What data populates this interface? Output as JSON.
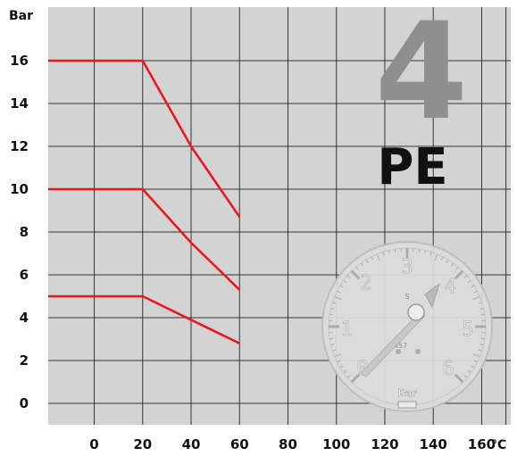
{
  "chart_data": {
    "type": "line",
    "ylabel": "Bar",
    "xlabel": "°C",
    "x_ticks": [
      0,
      20,
      40,
      60,
      80,
      100,
      120,
      140,
      160
    ],
    "y_ticks": [
      0,
      2,
      4,
      6,
      8,
      10,
      12,
      14,
      16
    ],
    "xlim": [
      -19,
      172
    ],
    "ylim": [
      -1,
      18.5
    ],
    "grid": true,
    "series": [
      {
        "color": "#e8191c",
        "points": [
          [
            -19,
            16
          ],
          [
            20,
            16
          ],
          [
            40,
            12
          ],
          [
            60,
            8.7
          ]
        ]
      },
      {
        "color": "#e8191c",
        "points": [
          [
            -19,
            10
          ],
          [
            20,
            10
          ],
          [
            40,
            7.5
          ],
          [
            60,
            5.3
          ]
        ]
      },
      {
        "color": "#e8191c",
        "points": [
          [
            -19,
            5
          ],
          [
            20,
            5
          ],
          [
            40,
            3.9
          ],
          [
            60,
            2.8
          ]
        ]
      }
    ]
  },
  "badge": {
    "number": "4",
    "label": "PE"
  },
  "gauge": {
    "numbers": [
      "0",
      "1",
      "2",
      "3",
      "4",
      "5",
      "6"
    ],
    "unit": "Bar",
    "small_text": "1457",
    "letter": "S"
  }
}
